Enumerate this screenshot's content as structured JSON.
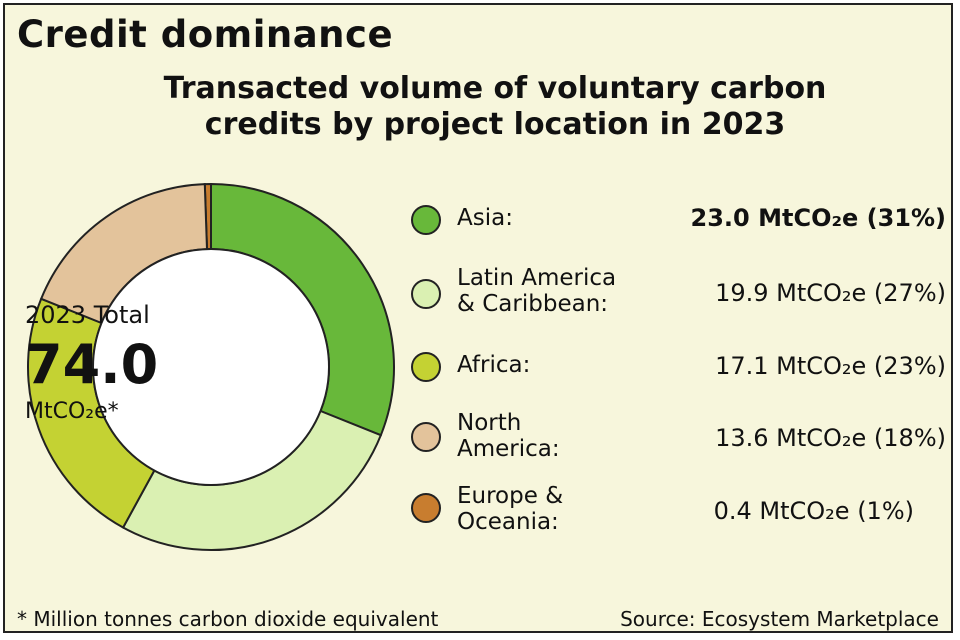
{
  "heading": "Credit dominance",
  "subtitle_line1": "Transacted volume of voluntary carbon",
  "subtitle_line2": "credits by project location in 2023",
  "center": {
    "label": "2023 Total",
    "value": "74.0",
    "unit": "MtCO₂e*"
  },
  "footnote": "* Million tonnes carbon dioxide equivalent",
  "source": "Source: Ecosystem Marketplace",
  "legend_rows": [
    {
      "line1": "Asia:",
      "line2": "",
      "value": "23.0 MtCO₂e (31%)"
    },
    {
      "line1": "Latin America",
      "line2": "& Caribbean:",
      "value": "19.9 MtCO₂e (27%)"
    },
    {
      "line1": "Africa:",
      "line2": "",
      "value": "17.1 MtCO₂e (23%)"
    },
    {
      "line1": "North",
      "line2": "America:",
      "value": "13.6 MtCO₂e (18%)"
    },
    {
      "line1": "Europe &",
      "line2": "Oceania:",
      "value": "0.4 MtCO₂e (1%)"
    }
  ],
  "chart_data": {
    "type": "pie",
    "donut": true,
    "categories": [
      "Asia",
      "Latin America & Caribbean",
      "Africa",
      "North America",
      "Europe & Oceania"
    ],
    "values": [
      23.0,
      19.9,
      17.1,
      13.6,
      0.4
    ],
    "percent": [
      31,
      27,
      23,
      18,
      1
    ],
    "unit": "MtCO₂e",
    "total": 74.0,
    "colors": [
      "#68b83a",
      "#daf0b2",
      "#c4d233",
      "#e3c39b",
      "#c87d2f"
    ],
    "legend_position": "right"
  }
}
